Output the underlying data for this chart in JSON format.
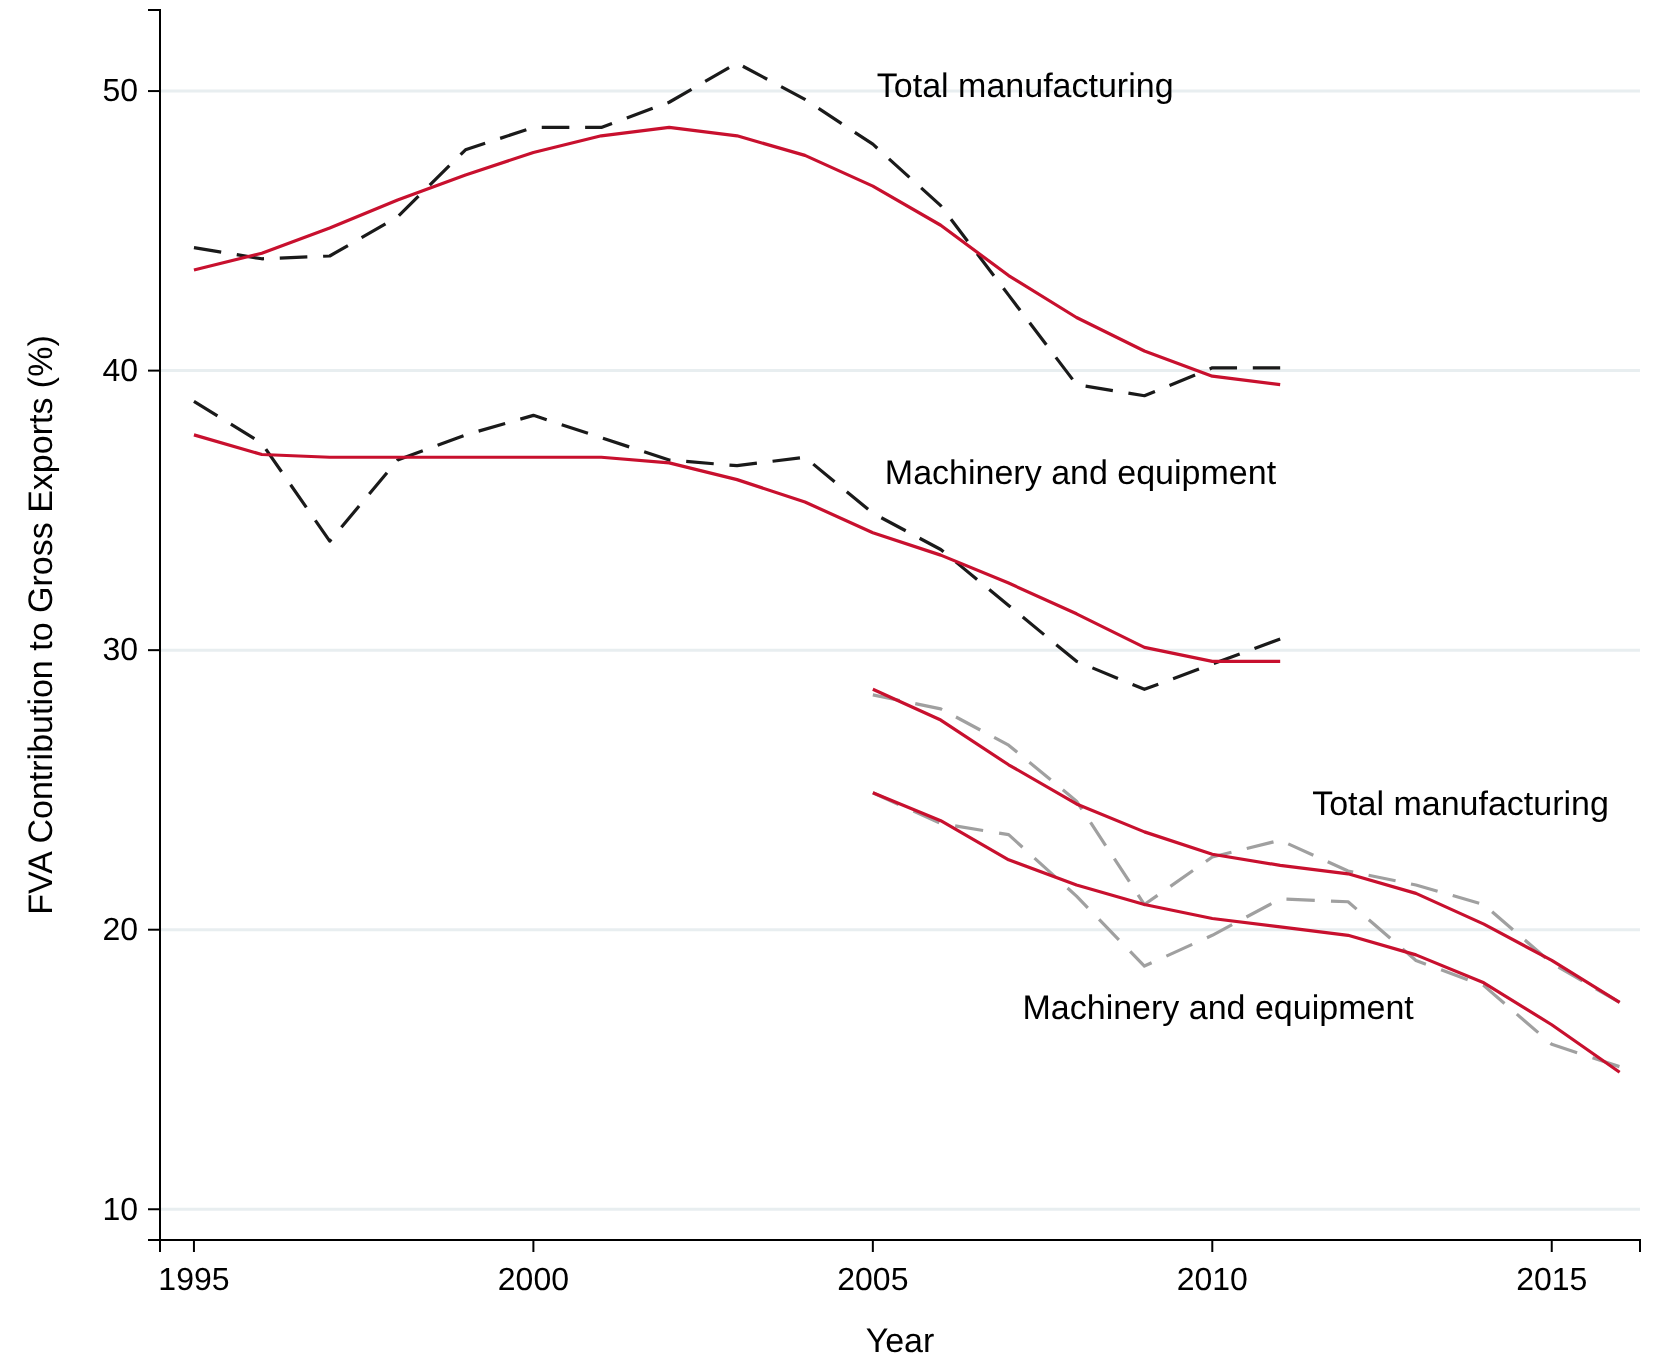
{
  "chart_data": {
    "type": "line",
    "xlabel": "Year",
    "ylabel": "FVA Contribution to Gross Exports (%)",
    "xlim": [
      1994.5,
      2016.3
    ],
    "ylim": [
      8.9,
      52.9
    ],
    "xticks": [
      1995,
      2000,
      2005,
      2010,
      2015
    ],
    "yticks": [
      10,
      20,
      30,
      40,
      50
    ],
    "grid": "y",
    "series": [
      {
        "name": "Total manufacturing",
        "color": "#1a1a1a",
        "line_style": "dashed",
        "x": [
          1995,
          1996,
          1997,
          1998,
          1999,
          2000,
          2001,
          2002,
          2003,
          2004,
          2005,
          2006,
          2007,
          2008,
          2009,
          2010,
          2011
        ],
        "values": [
          44.4,
          44.0,
          44.1,
          45.5,
          47.9,
          48.7,
          48.7,
          49.6,
          51.0,
          49.7,
          48.1,
          45.9,
          42.7,
          39.5,
          39.1,
          40.1,
          40.1
        ]
      },
      {
        "color": "#c8102e",
        "line_style": "solid",
        "x": [
          1995,
          1996,
          1997,
          1998,
          1999,
          2000,
          2001,
          2002,
          2003,
          2004,
          2005,
          2006,
          2007,
          2008,
          2009,
          2010,
          2011
        ],
        "values": [
          43.6,
          44.2,
          45.1,
          46.1,
          47.0,
          47.8,
          48.4,
          48.7,
          48.4,
          47.7,
          46.6,
          45.2,
          43.4,
          41.9,
          40.7,
          39.8,
          39.5
        ]
      },
      {
        "name": "Machinery and equipment",
        "color": "#1a1a1a",
        "line_style": "dashed",
        "x": [
          1995,
          1996,
          1997,
          1998,
          1999,
          2000,
          2001,
          2002,
          2003,
          2004,
          2005,
          2006,
          2007,
          2008,
          2009,
          2010,
          2011
        ],
        "values": [
          38.9,
          37.4,
          33.9,
          36.8,
          37.7,
          38.4,
          37.6,
          36.8,
          36.6,
          36.9,
          34.9,
          33.6,
          31.6,
          29.6,
          28.6,
          29.5,
          30.4
        ]
      },
      {
        "color": "#c8102e",
        "line_style": "solid",
        "x": [
          1995,
          1996,
          1997,
          1998,
          1999,
          2000,
          2001,
          2002,
          2003,
          2004,
          2005,
          2006,
          2007,
          2008,
          2009,
          2010,
          2011
        ],
        "values": [
          37.7,
          37.0,
          36.9,
          36.9,
          36.9,
          36.9,
          36.9,
          36.7,
          36.1,
          35.3,
          34.2,
          33.4,
          32.4,
          31.3,
          30.1,
          29.6,
          29.6
        ]
      },
      {
        "name": "Total manufacturing",
        "color": "#a0a0a0",
        "line_style": "dashed",
        "x": [
          2005,
          2006,
          2007,
          2008,
          2009,
          2010,
          2011,
          2012,
          2013,
          2014,
          2015,
          2016
        ],
        "values": [
          28.4,
          27.9,
          26.6,
          24.6,
          20.9,
          22.6,
          23.2,
          22.1,
          21.6,
          20.9,
          18.8,
          17.4
        ]
      },
      {
        "color": "#c8102e",
        "line_style": "solid",
        "x": [
          2005,
          2006,
          2007,
          2008,
          2009,
          2010,
          2011,
          2012,
          2013,
          2014,
          2015,
          2016
        ],
        "values": [
          28.6,
          27.5,
          25.9,
          24.5,
          23.5,
          22.7,
          22.3,
          22.0,
          21.3,
          20.2,
          18.9,
          17.4
        ]
      },
      {
        "name": "Machinery and equipment",
        "color": "#a0a0a0",
        "line_style": "dashed",
        "x": [
          2005,
          2006,
          2007,
          2008,
          2009,
          2010,
          2011,
          2012,
          2013,
          2014,
          2015,
          2016
        ],
        "values": [
          24.9,
          23.8,
          23.4,
          21.2,
          18.7,
          19.8,
          21.1,
          21.0,
          18.9,
          18.0,
          15.9,
          15.1
        ]
      },
      {
        "color": "#c8102e",
        "line_style": "solid",
        "x": [
          2005,
          2006,
          2007,
          2008,
          2009,
          2010,
          2011,
          2012,
          2013,
          2014,
          2015,
          2016
        ],
        "values": [
          24.9,
          23.9,
          22.5,
          21.6,
          20.9,
          20.4,
          20.1,
          19.8,
          19.1,
          18.1,
          16.6,
          14.9
        ]
      }
    ]
  }
}
